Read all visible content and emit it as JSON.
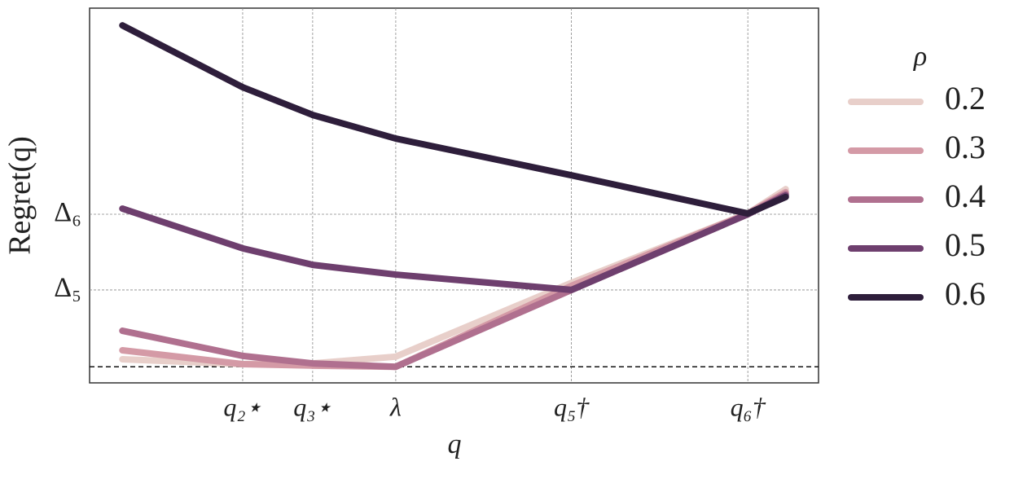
{
  "chart_data": {
    "type": "line",
    "x_label": "q",
    "y_label": "Regret(q)",
    "legend_title": "ρ",
    "legend_position": "right outside",
    "x": [
      4.5,
      21,
      30.6,
      42,
      66.1,
      90.3,
      95.5
    ],
    "series": [
      {
        "name": "0.2",
        "color": "#e8cfca",
        "values": [
          6.3,
          5.0,
          5.2,
          7.0,
          26.7,
          45.2,
          51.7
        ]
      },
      {
        "name": "0.3",
        "color": "#d49aa6",
        "values": [
          8.7,
          5.0,
          4.6,
          4.3,
          25.9,
          45.2,
          50.9
        ]
      },
      {
        "name": "0.4",
        "color": "#b0708f",
        "values": [
          13.9,
          7.2,
          5.2,
          4.3,
          24.8,
          45.0,
          50.4
        ]
      },
      {
        "name": "0.5",
        "color": "#6e3f6e",
        "values": [
          46.5,
          35.9,
          31.5,
          28.9,
          24.8,
          45.0,
          50.0
        ]
      },
      {
        "name": "0.6",
        "color": "#2e1e3b",
        "values": [
          95.4,
          78.9,
          71.5,
          65.2,
          55.4,
          45.2,
          49.6
        ]
      }
    ],
    "xlim": [
      0,
      100
    ],
    "ylim": [
      0,
      100
    ],
    "xticks": [
      {
        "value": 21,
        "label": "q₂⋆"
      },
      {
        "value": 30.6,
        "label": "q₃⋆"
      },
      {
        "value": 42,
        "label": "λ"
      },
      {
        "value": 66.1,
        "label": "q₅†"
      },
      {
        "value": 90.3,
        "label": "q₆†"
      }
    ],
    "yticks": [
      {
        "value": 24.8,
        "label": "Δ₅"
      },
      {
        "value": 45,
        "label": "Δ₆"
      }
    ],
    "reference_line": 4.3,
    "grid": true
  }
}
